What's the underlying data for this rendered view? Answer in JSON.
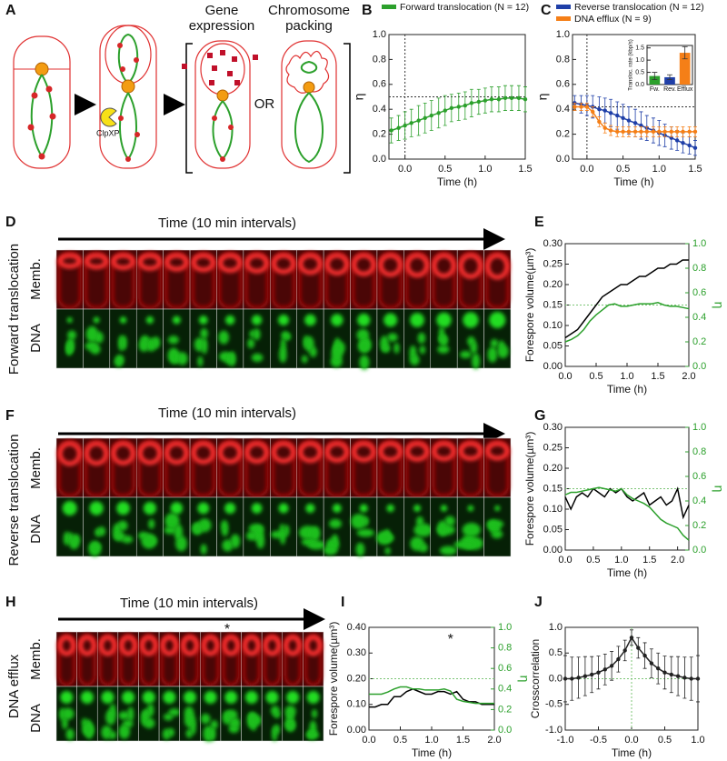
{
  "figure": {
    "panel_a": {
      "letter": "A",
      "gene_expression": [
        "Gene",
        "expression"
      ],
      "chromosome_packing": [
        "Chromosome",
        "packing"
      ],
      "or": "OR",
      "clpxp": "ClpXP"
    },
    "panel_d": {
      "letter": "D",
      "title": "Time (10 min intervals)",
      "side_label": "Forward translocation",
      "rows": [
        "Memb.",
        "DNA"
      ]
    },
    "panel_f": {
      "letter": "F",
      "title": "Time (10 min intervals)",
      "side_label": "Reverse translocation",
      "rows": [
        "Memb.",
        "DNA"
      ]
    },
    "panel_h": {
      "letter": "H",
      "title": "Time (10 min intervals)",
      "side_label": "DNA efflux",
      "rows": [
        "Memb.",
        "DNA"
      ],
      "marker": "*"
    }
  },
  "chart_data": [
    {
      "type": "line",
      "panel": "B",
      "xlabel": "Time (h)",
      "ylabel": "η",
      "xlim": [
        -0.2,
        1.5
      ],
      "xticks": [
        {
          "value": 0,
          "label": "0.0"
        },
        0.5,
        {
          "value": 1,
          "label": "1.0"
        },
        1.5
      ],
      "ylim": [
        0,
        1
      ],
      "yticks": [
        {
          "value": 0,
          "label": "0.0"
        },
        0.2,
        0.4,
        0.6,
        0.8,
        {
          "value": 1,
          "label": "1.0"
        }
      ],
      "x": [
        -0.17,
        -0.08,
        0,
        0.08,
        0.17,
        0.25,
        0.33,
        0.42,
        0.5,
        0.58,
        0.67,
        0.75,
        0.83,
        0.92,
        1,
        1.08,
        1.17,
        1.25,
        1.33,
        1.42,
        1.5
      ],
      "series": [
        {
          "name": "Forward translocation (N = 12)",
          "color": "#2ca02c",
          "values": [
            0.23,
            0.25,
            0.27,
            0.29,
            0.31,
            0.33,
            0.35,
            0.37,
            0.39,
            0.41,
            0.42,
            0.43,
            0.45,
            0.46,
            0.47,
            0.48,
            0.48,
            0.49,
            0.49,
            0.49,
            0.48
          ],
          "errors": [
            0.1,
            0.1,
            0.11,
            0.11,
            0.12,
            0.12,
            0.12,
            0.12,
            0.12,
            0.11,
            0.11,
            0.11,
            0.11,
            0.1,
            0.1,
            0.1,
            0.1,
            0.1,
            0.1,
            0.1,
            0.1
          ]
        }
      ],
      "markers": true,
      "hline": 0.5,
      "vline": 0,
      "reference_color": "#333333"
    },
    {
      "type": "line",
      "panel": "C",
      "xlabel": "Time (h)",
      "ylabel": "η",
      "xlim": [
        -0.2,
        1.5
      ],
      "xticks": [
        {
          "value": 0,
          "label": "0.0"
        },
        0.5,
        {
          "value": 1,
          "label": "1.0"
        },
        1.5
      ],
      "ylim": [
        0,
        1
      ],
      "yticks": [
        {
          "value": 0,
          "label": "0.0"
        },
        0.2,
        0.4,
        0.6,
        0.8,
        {
          "value": 1,
          "label": "1.0"
        }
      ],
      "x": [
        -0.17,
        -0.08,
        0,
        0.08,
        0.17,
        0.25,
        0.33,
        0.42,
        0.5,
        0.58,
        0.67,
        0.75,
        0.83,
        0.92,
        1,
        1.08,
        1.17,
        1.25,
        1.33,
        1.42,
        1.5
      ],
      "series": [
        {
          "name": "Reverse translocation (N = 12)",
          "color": "#1f3fa8",
          "values": [
            0.45,
            0.44,
            0.43,
            0.42,
            0.4,
            0.39,
            0.37,
            0.35,
            0.33,
            0.31,
            0.29,
            0.27,
            0.25,
            0.23,
            0.21,
            0.19,
            0.17,
            0.15,
            0.13,
            0.11,
            0.09
          ],
          "errors": [
            0.06,
            0.07,
            0.08,
            0.09,
            0.1,
            0.1,
            0.11,
            0.11,
            0.11,
            0.11,
            0.11,
            0.11,
            0.1,
            0.1,
            0.1,
            0.09,
            0.09,
            0.08,
            0.08,
            0.07,
            0.06
          ]
        },
        {
          "name": "DNA efflux (N = 9)",
          "color": "#f57f17",
          "values": [
            0.42,
            0.42,
            0.42,
            0.38,
            0.3,
            0.25,
            0.23,
            0.22,
            0.22,
            0.22,
            0.22,
            0.22,
            0.22,
            0.22,
            0.22,
            0.22,
            0.22,
            0.22,
            0.22,
            0.22,
            0.22
          ],
          "errors": [
            0.03,
            0.03,
            0.03,
            0.04,
            0.04,
            0.04,
            0.04,
            0.04,
            0.04,
            0.04,
            0.04,
            0.04,
            0.04,
            0.04,
            0.04,
            0.04,
            0.04,
            0.04,
            0.04,
            0.04,
            0.04
          ]
        }
      ],
      "markers": true,
      "hline": 0.42,
      "vline": 0,
      "reference_color": "#333333"
    },
    {
      "type": "bar",
      "ylabel": "Transloc. rate (kbp/s)",
      "categories": [
        "Fw.",
        "Rev.",
        "Efflux"
      ],
      "values": [
        0.35,
        0.3,
        1.3
      ],
      "errors": [
        0.15,
        0.1,
        0.25
      ],
      "colors": [
        "#2ca02c",
        "#1f3fa8",
        "#f57f17"
      ],
      "ylim": [
        0,
        1.6
      ],
      "yticks": [
        {
          "value": 0,
          "label": "0.0"
        },
        0.5,
        {
          "value": 1,
          "label": "1.0"
        },
        1.5
      ]
    },
    {
      "type": "line",
      "panel": "E",
      "xlabel": "Time (h)",
      "ylabel": "Forespore volume(µm³)",
      "y2label": "η",
      "y2color": "#2ca02c",
      "xlim": [
        0,
        2
      ],
      "xticks": [
        {
          "value": 0,
          "label": "0.0"
        },
        0.5,
        {
          "value": 1,
          "label": "1.0"
        },
        1.5,
        {
          "value": 2,
          "label": "2.0"
        }
      ],
      "ylim": [
        0,
        0.3
      ],
      "yticks": [
        {
          "value": 0,
          "label": "0.00"
        },
        0.05,
        {
          "value": 0.1,
          "label": "0.10"
        },
        0.15,
        {
          "value": 0.2,
          "label": "0.20"
        },
        0.25,
        {
          "value": 0.3,
          "label": "0.30"
        }
      ],
      "y2lim": [
        0,
        1
      ],
      "y2ticks": [
        {
          "value": 0,
          "label": "0.0"
        },
        0.2,
        0.4,
        0.6,
        0.8,
        {
          "value": 1,
          "label": "1.0"
        }
      ],
      "x": [
        0,
        0.1,
        0.2,
        0.3,
        0.4,
        0.5,
        0.6,
        0.7,
        0.8,
        0.9,
        1,
        1.1,
        1.2,
        1.3,
        1.4,
        1.5,
        1.6,
        1.7,
        1.8,
        1.9,
        2
      ],
      "series": [
        {
          "color": "#000000",
          "values": [
            0.07,
            0.08,
            0.09,
            0.11,
            0.13,
            0.15,
            0.17,
            0.18,
            0.19,
            0.2,
            0.2,
            0.21,
            0.22,
            0.22,
            0.23,
            0.24,
            0.24,
            0.25,
            0.25,
            0.26,
            0.26
          ]
        },
        {
          "color": "#2ca02c",
          "axis": "y2",
          "values": [
            0.2,
            0.22,
            0.25,
            0.3,
            0.37,
            0.42,
            0.46,
            0.5,
            0.51,
            0.49,
            0.49,
            0.5,
            0.51,
            0.51,
            0.51,
            0.52,
            0.5,
            0.49,
            0.49,
            0.48,
            0.47
          ]
        }
      ],
      "markers": false,
      "hline": 0.15,
      "reference_color": "#7cc576"
    },
    {
      "type": "line",
      "panel": "G",
      "xlabel": "Time (h)",
      "ylabel": "Forespore volume(µm³)",
      "y2label": "η",
      "y2color": "#2ca02c",
      "xlim": [
        0,
        2.2
      ],
      "xticks": [
        {
          "value": 0,
          "label": "0.0"
        },
        0.5,
        {
          "value": 1,
          "label": "1.0"
        },
        1.5,
        {
          "value": 2,
          "label": "2.0"
        }
      ],
      "ylim": [
        0,
        0.3
      ],
      "yticks": [
        {
          "value": 0,
          "label": "0.00"
        },
        0.05,
        {
          "value": 0.1,
          "label": "0.10"
        },
        0.15,
        {
          "value": 0.2,
          "label": "0.20"
        },
        0.25,
        {
          "value": 0.3,
          "label": "0.30"
        }
      ],
      "y2lim": [
        0,
        1
      ],
      "y2ticks": [
        {
          "value": 0,
          "label": "0.0"
        },
        0.2,
        0.4,
        0.6,
        0.8,
        {
          "value": 1,
          "label": "1.0"
        }
      ],
      "x": [
        0,
        0.1,
        0.2,
        0.3,
        0.4,
        0.5,
        0.6,
        0.7,
        0.8,
        0.9,
        1,
        1.1,
        1.2,
        1.3,
        1.4,
        1.5,
        1.6,
        1.7,
        1.8,
        1.9,
        2,
        2.1,
        2.2
      ],
      "series": [
        {
          "color": "#000000",
          "values": [
            0.13,
            0.1,
            0.13,
            0.14,
            0.13,
            0.15,
            0.14,
            0.13,
            0.15,
            0.14,
            0.15,
            0.13,
            0.12,
            0.13,
            0.14,
            0.11,
            0.12,
            0.13,
            0.11,
            0.12,
            0.15,
            0.08,
            0.11
          ]
        },
        {
          "color": "#2ca02c",
          "axis": "y2",
          "values": [
            0.45,
            0.47,
            0.47,
            0.48,
            0.49,
            0.5,
            0.51,
            0.5,
            0.49,
            0.48,
            0.5,
            0.45,
            0.42,
            0.4,
            0.38,
            0.35,
            0.3,
            0.25,
            0.22,
            0.2,
            0.18,
            0.12,
            0.08
          ]
        }
      ],
      "markers": false,
      "hline": 0.15,
      "reference_color": "#7cc576"
    },
    {
      "type": "line",
      "panel": "I",
      "xlabel": "Time (h)",
      "ylabel": "Forespore volume(µm³)",
      "y2label": "η",
      "y2color": "#2ca02c",
      "annotation": "*",
      "xlim": [
        0,
        2
      ],
      "xticks": [
        {
          "value": 0,
          "label": "0.0"
        },
        0.5,
        {
          "value": 1,
          "label": "1.0"
        },
        1.5,
        {
          "value": 2,
          "label": "2.0"
        }
      ],
      "ylim": [
        0,
        0.4
      ],
      "yticks": [
        {
          "value": 0,
          "label": "0.00"
        },
        {
          "value": 0.1,
          "label": "0.10"
        },
        {
          "value": 0.2,
          "label": "0.20"
        },
        {
          "value": 0.3,
          "label": "0.30"
        },
        {
          "value": 0.4,
          "label": "0.40"
        }
      ],
      "y2lim": [
        0,
        1
      ],
      "y2ticks": [
        {
          "value": 0,
          "label": "0.0"
        },
        0.2,
        0.4,
        0.6,
        0.8,
        {
          "value": 1,
          "label": "1.0"
        }
      ],
      "x": [
        0,
        0.1,
        0.2,
        0.3,
        0.4,
        0.5,
        0.6,
        0.7,
        0.8,
        0.9,
        1,
        1.1,
        1.2,
        1.3,
        1.4,
        1.5,
        1.6,
        1.7,
        1.8,
        1.9,
        2
      ],
      "series": [
        {
          "color": "#000000",
          "values": [
            0.09,
            0.09,
            0.1,
            0.1,
            0.13,
            0.13,
            0.15,
            0.16,
            0.15,
            0.14,
            0.14,
            0.15,
            0.15,
            0.14,
            0.15,
            0.12,
            0.11,
            0.11,
            0.1,
            0.1,
            0.1
          ]
        },
        {
          "color": "#2ca02c",
          "axis": "y2",
          "values": [
            0.35,
            0.35,
            0.35,
            0.37,
            0.4,
            0.42,
            0.42,
            0.4,
            0.4,
            0.39,
            0.39,
            0.39,
            0.4,
            0.38,
            0.3,
            0.28,
            0.27,
            0.26,
            0.26,
            0.26,
            0.26
          ]
        }
      ],
      "markers": false,
      "hline": 0.2,
      "reference_color": "#7cc576"
    },
    {
      "type": "line",
      "panel": "J",
      "xlabel": "Time (h)",
      "ylabel": "Crosscorrelation",
      "xlim": [
        -1,
        1
      ],
      "xticks": [
        {
          "value": -1,
          "label": "-1.0"
        },
        -0.5,
        {
          "value": 0,
          "label": "0.0"
        },
        0.5,
        {
          "value": 1,
          "label": "1.0"
        }
      ],
      "ylim": [
        -1,
        1
      ],
      "yticks": [
        {
          "value": -1,
          "label": "-1.0"
        },
        -0.5,
        {
          "value": 0,
          "label": "0.0"
        },
        0.5,
        {
          "value": 1,
          "label": "1.0"
        }
      ],
      "x": [
        -1,
        -0.9,
        -0.8,
        -0.7,
        -0.6,
        -0.5,
        -0.4,
        -0.3,
        -0.2,
        -0.1,
        0,
        0.1,
        0.2,
        0.3,
        0.4,
        0.5,
        0.6,
        0.7,
        0.8,
        0.9,
        1
      ],
      "series": [
        {
          "color": "#222222",
          "values": [
            0,
            0,
            0.02,
            0.05,
            0.08,
            0.12,
            0.18,
            0.25,
            0.38,
            0.55,
            0.8,
            0.6,
            0.45,
            0.3,
            0.2,
            0.12,
            0.08,
            0.05,
            0.02,
            0,
            0
          ],
          "errors": [
            0.45,
            0.42,
            0.4,
            0.38,
            0.35,
            0.32,
            0.3,
            0.28,
            0.25,
            0.2,
            0.15,
            0.2,
            0.25,
            0.28,
            0.3,
            0.32,
            0.35,
            0.38,
            0.4,
            0.42,
            0.45
          ]
        }
      ],
      "markers": true,
      "hline": 0,
      "vline": 0,
      "reference_color": "#7cc576"
    }
  ]
}
